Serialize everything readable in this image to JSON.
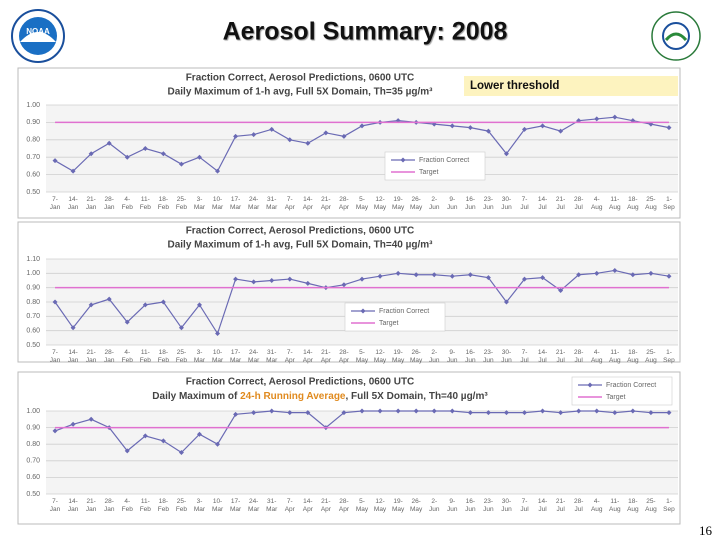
{
  "slide": {
    "title": "Aerosol Summary:  2008",
    "page_number": "16",
    "logo_text": "NOAA"
  },
  "chart_data": [
    {
      "type": "line",
      "title": "Fraction Correct, Aerosol Predictions, 0600 UTC",
      "subtitle": "Daily Maximum of 1-h avg, Full 5X Domain, Th=35 µg/m³",
      "annotation": "Lower threshold",
      "grid": true,
      "legend_position": "lower center",
      "categories": [
        "7-Jan",
        "14-Jan",
        "21-Jan",
        "28-Jan",
        "4-Feb",
        "11-Feb",
        "18-Feb",
        "25-Feb",
        "3-Mar",
        "10-Mar",
        "17-Mar",
        "24-Mar",
        "31-Mar",
        "7-Apr",
        "14-Apr",
        "21-Apr",
        "28-Apr",
        "5-May",
        "12-May",
        "19-May",
        "26-May",
        "2-Jun",
        "9-Jun",
        "16-Jun",
        "23-Jun",
        "30-Jun",
        "7-Jul",
        "14-Jul",
        "21-Jul",
        "28-Jul",
        "4-Aug",
        "11-Aug",
        "18-Aug",
        "25-Aug",
        "1-Sep"
      ],
      "ylim": [
        0.5,
        1.0
      ],
      "yticks": [
        {
          "value": 0.5,
          "label": "0.50"
        },
        {
          "value": 0.6,
          "label": "0.60"
        },
        {
          "value": 0.7,
          "label": "0.70"
        },
        {
          "value": 0.8,
          "label": "0.80"
        },
        {
          "value": 0.9,
          "label": "0.90"
        },
        {
          "value": 1.0,
          "label": "1.00"
        }
      ],
      "series": [
        {
          "name": "Fraction Correct",
          "color": "#6a6ab4",
          "values": [
            0.68,
            0.62,
            0.72,
            0.78,
            0.7,
            0.75,
            0.72,
            0.66,
            0.7,
            0.62,
            0.82,
            0.83,
            0.86,
            0.8,
            0.78,
            0.84,
            0.82,
            0.88,
            0.9,
            0.91,
            0.9,
            0.89,
            0.88,
            0.87,
            0.85,
            0.72,
            0.86,
            0.88,
            0.85,
            0.91,
            0.92,
            0.93,
            0.91,
            0.89,
            0.87
          ]
        },
        {
          "name": "Target",
          "color": "#e070d0",
          "values": [
            0.9,
            0.9,
            0.9,
            0.9,
            0.9,
            0.9,
            0.9,
            0.9,
            0.9,
            0.9,
            0.9,
            0.9,
            0.9,
            0.9,
            0.9,
            0.9,
            0.9,
            0.9,
            0.9,
            0.9,
            0.9,
            0.9,
            0.9,
            0.9,
            0.9,
            0.9,
            0.9,
            0.9,
            0.9,
            0.9,
            0.9,
            0.9,
            0.9,
            0.9,
            0.9
          ]
        }
      ]
    },
    {
      "type": "line",
      "title": "Fraction Correct, Aerosol Predictions, 0600 UTC",
      "subtitle": "Daily Maximum of 1-h avg, Full 5X Domain, Th=40 µg/m³",
      "grid": true,
      "legend_position": "lower center",
      "categories": [
        "7-Jan",
        "14-Jan",
        "21-Jan",
        "28-Jan",
        "4-Feb",
        "11-Feb",
        "18-Feb",
        "25-Feb",
        "3-Mar",
        "10-Mar",
        "17-Mar",
        "24-Mar",
        "31-Mar",
        "7-Apr",
        "14-Apr",
        "21-Apr",
        "28-Apr",
        "5-May",
        "12-May",
        "19-May",
        "26-May",
        "2-Jun",
        "9-Jun",
        "16-Jun",
        "23-Jun",
        "30-Jun",
        "7-Jul",
        "14-Jul",
        "21-Jul",
        "28-Jul",
        "4-Aug",
        "11-Aug",
        "18-Aug",
        "25-Aug",
        "1-Sep"
      ],
      "ylim": [
        0.5,
        1.1
      ],
      "yticks": [
        {
          "value": 0.5,
          "label": "0.50"
        },
        {
          "value": 0.6,
          "label": "0.60"
        },
        {
          "value": 0.7,
          "label": "0.70"
        },
        {
          "value": 0.8,
          "label": "0.80"
        },
        {
          "value": 0.9,
          "label": "0.90"
        },
        {
          "value": 1.0,
          "label": "1.00"
        },
        {
          "value": 1.1,
          "label": "1.10"
        }
      ],
      "series": [
        {
          "name": "Fraction Correct",
          "color": "#6a6ab4",
          "values": [
            0.8,
            0.62,
            0.78,
            0.82,
            0.66,
            0.78,
            0.8,
            0.62,
            0.78,
            0.58,
            0.96,
            0.94,
            0.95,
            0.96,
            0.93,
            0.9,
            0.92,
            0.96,
            0.98,
            1.0,
            0.99,
            0.99,
            0.98,
            0.99,
            0.97,
            0.8,
            0.96,
            0.97,
            0.88,
            0.99,
            1.0,
            1.02,
            0.99,
            1.0,
            0.98
          ]
        },
        {
          "name": "Target",
          "color": "#e070d0",
          "values": [
            0.9,
            0.9,
            0.9,
            0.9,
            0.9,
            0.9,
            0.9,
            0.9,
            0.9,
            0.9,
            0.9,
            0.9,
            0.9,
            0.9,
            0.9,
            0.9,
            0.9,
            0.9,
            0.9,
            0.9,
            0.9,
            0.9,
            0.9,
            0.9,
            0.9,
            0.9,
            0.9,
            0.9,
            0.9,
            0.9,
            0.9,
            0.9,
            0.9,
            0.9,
            0.9
          ]
        }
      ]
    },
    {
      "type": "line",
      "title": "Fraction Correct, Aerosol Predictions, 0600 UTC",
      "subtitle_parts": [
        "Daily Maximum of ",
        "24-h Running Average",
        ", Full 5X Domain, Th=40 µg/m³"
      ],
      "subtitle_highlight_color": "#e08a1e",
      "grid": true,
      "legend_position": "upper right",
      "categories": [
        "7-Jan",
        "14-Jan",
        "21-Jan",
        "28-Jan",
        "4-Feb",
        "11-Feb",
        "18-Feb",
        "25-Feb",
        "3-Mar",
        "10-Mar",
        "17-Mar",
        "24-Mar",
        "31-Mar",
        "7-Apr",
        "14-Apr",
        "21-Apr",
        "28-Apr",
        "5-May",
        "12-May",
        "19-May",
        "26-May",
        "2-Jun",
        "9-Jun",
        "16-Jun",
        "23-Jun",
        "30-Jun",
        "7-Jul",
        "14-Jul",
        "21-Jul",
        "28-Jul",
        "4-Aug",
        "11-Aug",
        "18-Aug",
        "25-Aug",
        "1-Sep"
      ],
      "ylim": [
        0.5,
        1.0
      ],
      "yticks": [
        {
          "value": 0.5,
          "label": "0.50"
        },
        {
          "value": 0.6,
          "label": "0.60"
        },
        {
          "value": 0.7,
          "label": "0.70"
        },
        {
          "value": 0.8,
          "label": "0.80"
        },
        {
          "value": 0.9,
          "label": "0.90"
        },
        {
          "value": 1.0,
          "label": "1.00"
        }
      ],
      "series": [
        {
          "name": "Fraction Correct",
          "color": "#6a6ab4",
          "values": [
            0.88,
            0.92,
            0.95,
            0.9,
            0.76,
            0.85,
            0.82,
            0.75,
            0.86,
            0.8,
            0.98,
            0.99,
            1.0,
            0.99,
            0.99,
            0.9,
            0.99,
            1.0,
            1.0,
            1.0,
            1.0,
            1.0,
            1.0,
            0.99,
            0.99,
            0.99,
            0.99,
            1.0,
            0.99,
            1.0,
            1.0,
            0.99,
            1.0,
            0.99,
            0.99
          ]
        },
        {
          "name": "Target",
          "color": "#e070d0",
          "values": [
            0.9,
            0.9,
            0.9,
            0.9,
            0.9,
            0.9,
            0.9,
            0.9,
            0.9,
            0.9,
            0.9,
            0.9,
            0.9,
            0.9,
            0.9,
            0.9,
            0.9,
            0.9,
            0.9,
            0.9,
            0.9,
            0.9,
            0.9,
            0.9,
            0.9,
            0.9,
            0.9,
            0.9,
            0.9,
            0.9,
            0.9,
            0.9,
            0.9,
            0.9,
            0.9
          ]
        }
      ]
    }
  ]
}
